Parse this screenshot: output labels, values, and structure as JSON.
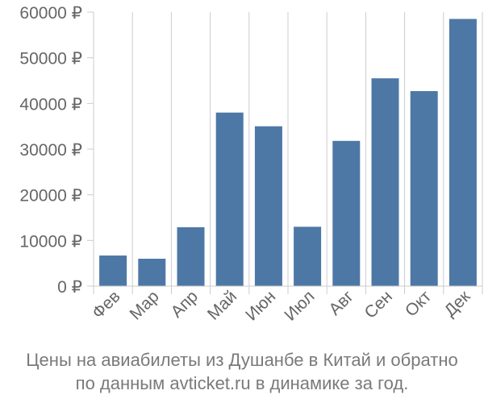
{
  "chart_data": {
    "type": "bar",
    "categories": [
      "Фев",
      "Мар",
      "Апр",
      "Май",
      "Июн",
      "Июл",
      "Авг",
      "Сен",
      "Окт",
      "Дек"
    ],
    "values": [
      6700,
      6000,
      12900,
      38000,
      35000,
      13000,
      31800,
      45500,
      42700,
      58500
    ],
    "ylim": [
      0,
      60000
    ],
    "yticks": [
      0,
      10000,
      20000,
      30000,
      40000,
      50000,
      60000
    ],
    "ytick_labels": [
      "0 ₽",
      "10000 ₽",
      "20000 ₽",
      "30000 ₽",
      "40000 ₽",
      "50000 ₽",
      "60000 ₽"
    ],
    "grid": "vertical lines between categories",
    "bar_color": "#4d78a6",
    "grid_color": "#cccccc",
    "axis_text_color": "#666666"
  },
  "caption": {
    "line1": "Цены на авиабилеты из Душанбе в Китай и обратно",
    "line2": "по данным avticket.ru в динамике за год."
  }
}
